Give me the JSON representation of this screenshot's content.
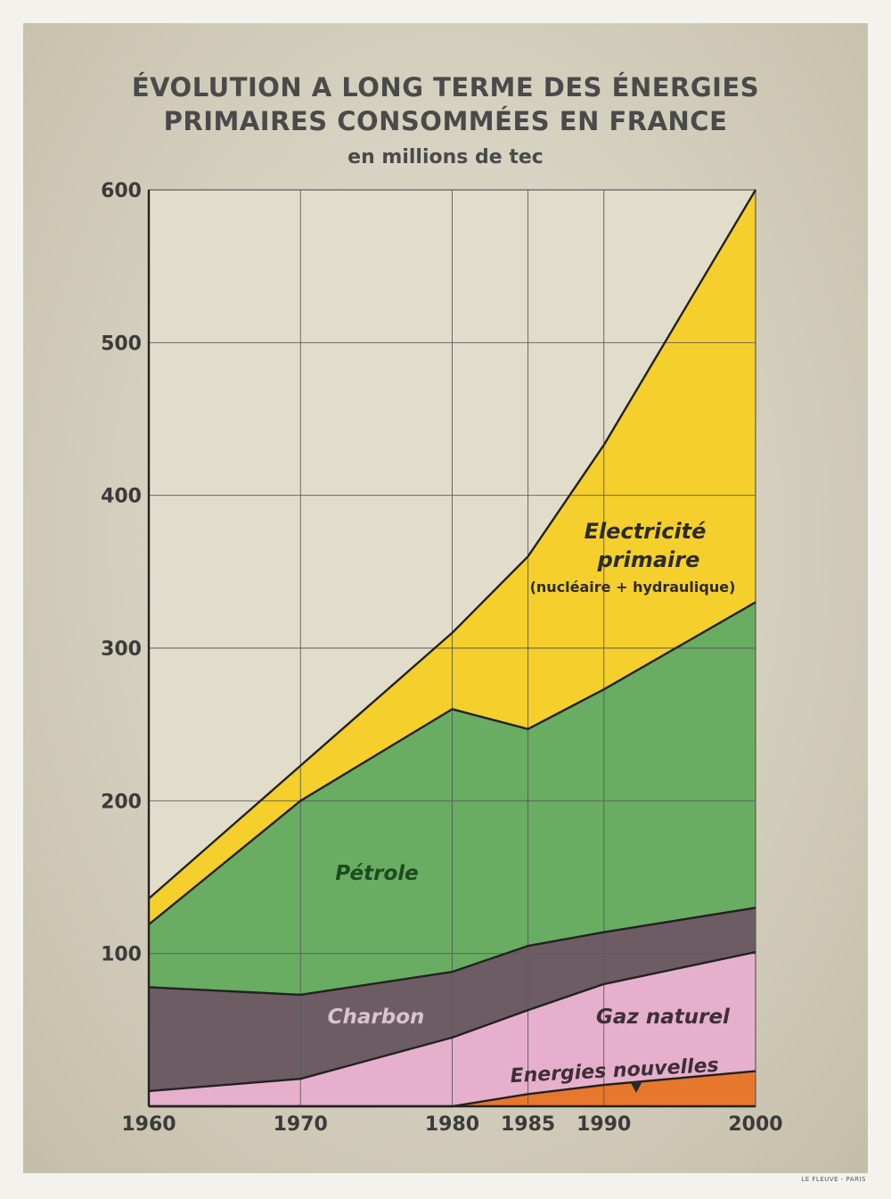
{
  "header": {
    "title_line1": "ÉVOLUTION A LONG TERME DES ÉNERGIES",
    "title_line2": "PRIMAIRES CONSOMMÉES EN FRANCE",
    "subtitle": "en millions de tec"
  },
  "credit": "LE FLEUVE - PARIS",
  "chart_data": {
    "type": "area",
    "stacked": true,
    "title": "ÉVOLUTION A LONG TERME DES ÉNERGIES PRIMAIRES CONSOMMÉES EN FRANCE",
    "subtitle": "en millions de tec",
    "x": [
      1960,
      1970,
      1980,
      1985,
      1990,
      2000
    ],
    "x_ticks": [
      "1960",
      "1970",
      "1980",
      "1985",
      "1990",
      "2000"
    ],
    "y_ticks": [
      "600",
      "500",
      "400",
      "300",
      "200",
      "100"
    ],
    "ylim": [
      0,
      600
    ],
    "xlim": [
      1960,
      2000
    ],
    "grid": true,
    "series": [
      {
        "name": "Energies nouvelles",
        "color": "#e8772e",
        "values": [
          0,
          0,
          0,
          8,
          14,
          23
        ]
      },
      {
        "name": "Gaz naturel",
        "color": "#e6b0cc",
        "values": [
          10,
          18,
          45,
          55,
          66,
          78
        ]
      },
      {
        "name": "Charbon",
        "color": "#6d5c63",
        "values": [
          68,
          55,
          43,
          42,
          34,
          29
        ]
      },
      {
        "name": "Pétrole",
        "color": "#68ad62",
        "values": [
          41,
          127,
          172,
          142,
          159,
          200
        ]
      },
      {
        "name": "Electricité primaire",
        "color": "#f5cf2b",
        "values": [
          17,
          23,
          50,
          113,
          160,
          270
        ]
      }
    ],
    "annotations": {
      "electricite_line1": "Electricité",
      "electricite_line2": "primaire",
      "electricite_note": "(nucléaire + hydraulique)",
      "petrole": "Pétrole",
      "charbon": "Charbon",
      "gaz": "Gaz naturel",
      "nouvelles": "Energies nouvelles"
    },
    "colors": {
      "plot_bg": "#e2ddca",
      "grid": "#5a5a5a",
      "boundary": "#222222"
    }
  }
}
